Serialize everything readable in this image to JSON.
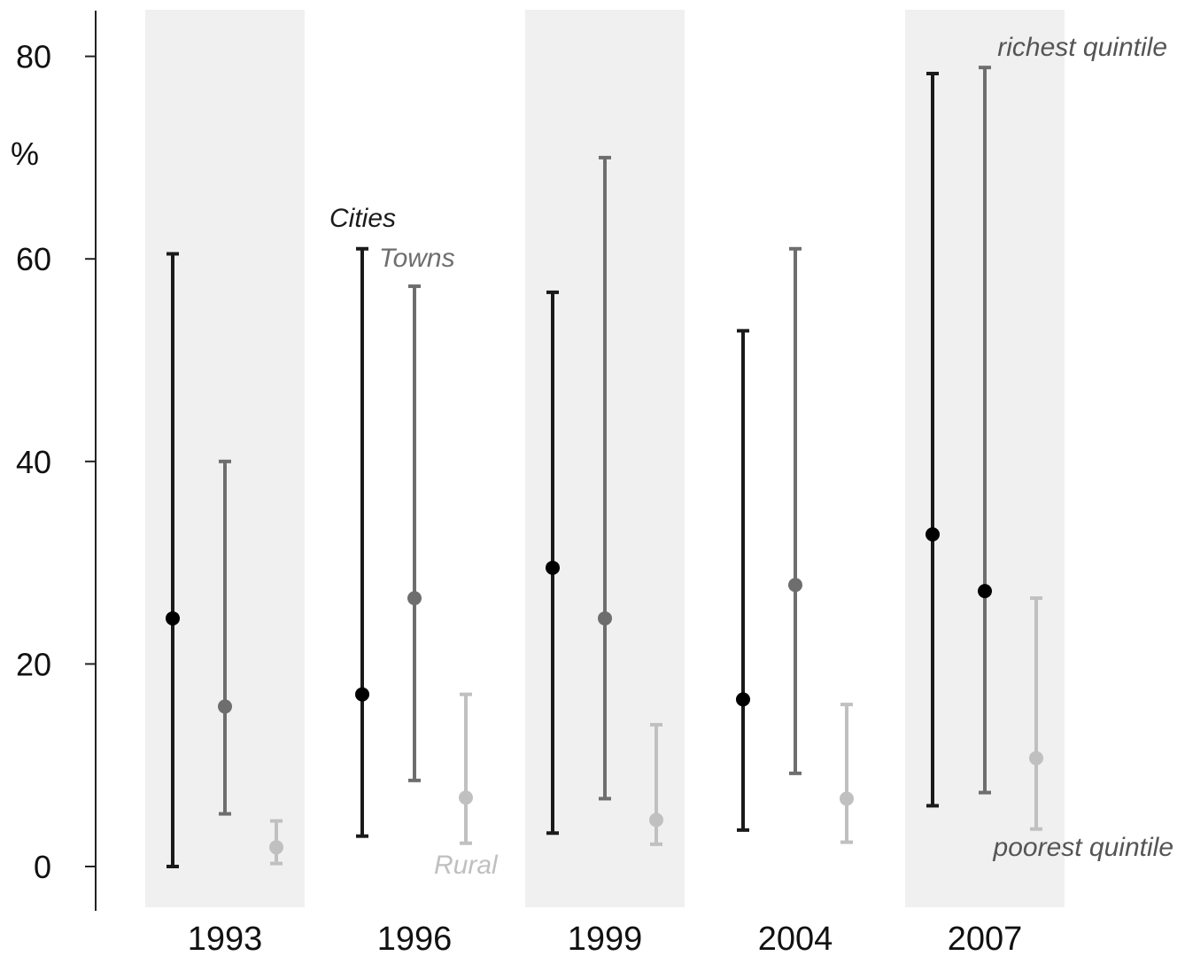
{
  "chart_data": {
    "type": "errorbar",
    "ylabel": "%",
    "ylim": [
      -4,
      85
    ],
    "yticks": [
      0,
      20,
      40,
      60,
      80
    ],
    "categories": [
      "1993",
      "1996",
      "1999",
      "2004",
      "2007"
    ],
    "shaded_categories": [
      "1993",
      "1999",
      "2007"
    ],
    "series": [
      {
        "name": "Cities",
        "color": "#1a1a1a",
        "points": [
          {
            "year": "1993",
            "value": 24.5,
            "low": 0.0,
            "high": 60.5
          },
          {
            "year": "1996",
            "value": 17.0,
            "low": 3.0,
            "high": 61.0
          },
          {
            "year": "1999",
            "value": 29.5,
            "low": 3.3,
            "high": 56.7
          },
          {
            "year": "2004",
            "value": 16.5,
            "low": 3.6,
            "high": 52.9
          },
          {
            "year": "2007",
            "value": 32.8,
            "low": 6.0,
            "high": 78.3
          }
        ]
      },
      {
        "name": "Towns",
        "color": "#6e6e6e",
        "points": [
          {
            "year": "1993",
            "value": 15.8,
            "low": 5.2,
            "high": 40.0
          },
          {
            "year": "1996",
            "value": 26.5,
            "low": 8.5,
            "high": 57.3
          },
          {
            "year": "1999",
            "value": 24.5,
            "low": 6.7,
            "high": 70.0
          },
          {
            "year": "2004",
            "value": 27.8,
            "low": 9.2,
            "high": 61.0
          },
          {
            "year": "2007",
            "value": 27.2,
            "low": 7.3,
            "high": 78.9
          }
        ]
      },
      {
        "name": "Rural",
        "color": "#c0c0c0",
        "points": [
          {
            "year": "1993",
            "value": 1.9,
            "low": 0.3,
            "high": 4.5
          },
          {
            "year": "1996",
            "value": 6.8,
            "low": 2.3,
            "high": 17.0
          },
          {
            "year": "1999",
            "value": 4.6,
            "low": 2.2,
            "high": 14.0
          },
          {
            "year": "2004",
            "value": 6.7,
            "low": 2.4,
            "high": 16.0
          },
          {
            "year": "2007",
            "value": 10.7,
            "low": 3.7,
            "high": 26.5
          }
        ]
      }
    ],
    "annotations": [
      {
        "text": "Cities",
        "color": "#1a1a1a"
      },
      {
        "text": "Towns",
        "color": "#6e6e6e"
      },
      {
        "text": "Rural",
        "color": "#c0c0c0"
      },
      {
        "text": "richest quintile",
        "color": "#555555"
      },
      {
        "text": "poorest quintile",
        "color": "#555555"
      }
    ],
    "grid": false,
    "legend": "inline annotations"
  }
}
